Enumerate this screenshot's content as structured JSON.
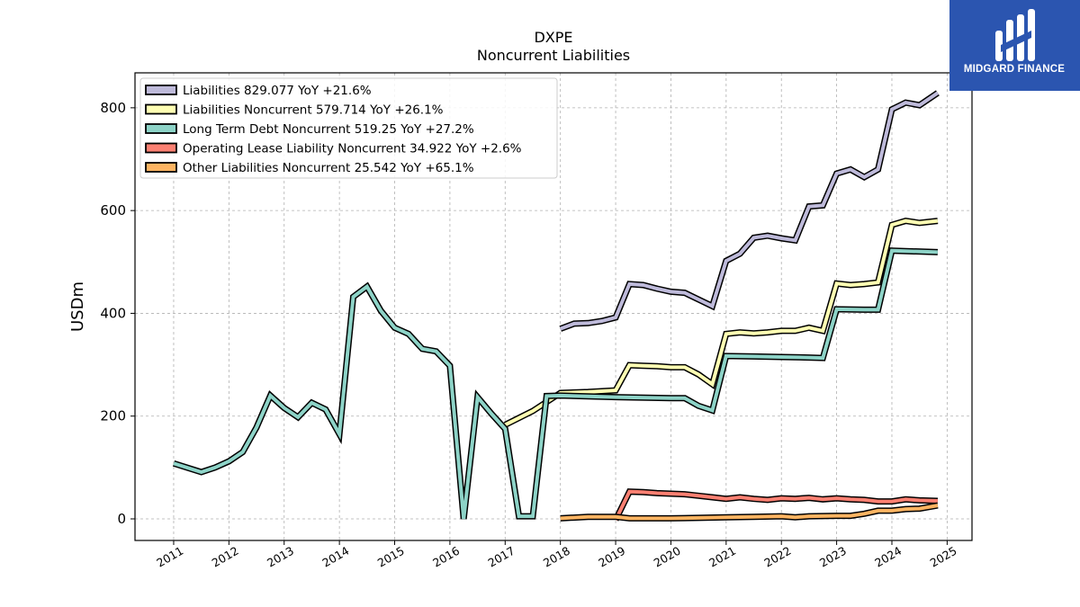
{
  "title": "DXPE",
  "subtitle": "Noncurrent  Liabilities",
  "logo": {
    "text": "MIDGARD FINANCE",
    "background": "#2b55b0"
  },
  "chart_data": {
    "type": "line",
    "ylabel": "USDm",
    "xlabel": "",
    "xlim": [
      2010.3,
      2025.45
    ],
    "ylim": [
      -42,
      868
    ],
    "yticks": [
      0,
      200,
      400,
      600,
      800
    ],
    "xticks": [
      "2011",
      "2012",
      "2013",
      "2014",
      "2015",
      "2016",
      "2017",
      "2018",
      "2019",
      "2020",
      "2021",
      "2022",
      "2023",
      "2024",
      "2025"
    ],
    "grid": true,
    "legend_position": "top-left",
    "series": [
      {
        "name": "Liabilities",
        "legend_label": "Liabilities  829.077 YoY +21.6%",
        "color": "#bebada",
        "points": [
          [
            2018.0,
            370
          ],
          [
            2018.25,
            380
          ],
          [
            2018.5,
            381
          ],
          [
            2018.75,
            385
          ],
          [
            2019.0,
            392
          ],
          [
            2019.25,
            457
          ],
          [
            2019.5,
            455
          ],
          [
            2019.75,
            448
          ],
          [
            2020.0,
            442
          ],
          [
            2020.25,
            440
          ],
          [
            2020.5,
            427
          ],
          [
            2020.75,
            414
          ],
          [
            2021.0,
            502
          ],
          [
            2021.25,
            516
          ],
          [
            2021.5,
            547
          ],
          [
            2021.75,
            551
          ],
          [
            2022.0,
            546
          ],
          [
            2022.25,
            542
          ],
          [
            2022.5,
            608
          ],
          [
            2022.75,
            610
          ],
          [
            2023.0,
            672
          ],
          [
            2023.25,
            680
          ],
          [
            2023.5,
            665
          ],
          [
            2023.75,
            680
          ],
          [
            2024.0,
            797
          ],
          [
            2024.25,
            810
          ],
          [
            2024.5,
            805
          ],
          [
            2024.83,
            829
          ]
        ]
      },
      {
        "name": "Liabilities Noncurrent",
        "legend_label": "Liabilities Noncurrent  579.714 YoY +26.1%",
        "color": "#ffffb3",
        "points": [
          [
            2017.0,
            183
          ],
          [
            2017.5,
            210
          ],
          [
            2018.0,
            245
          ],
          [
            2018.5,
            247
          ],
          [
            2019.0,
            250
          ],
          [
            2019.25,
            299
          ],
          [
            2019.5,
            298
          ],
          [
            2019.75,
            297
          ],
          [
            2020.0,
            295
          ],
          [
            2020.25,
            295
          ],
          [
            2020.5,
            281
          ],
          [
            2020.75,
            262
          ],
          [
            2021.0,
            360
          ],
          [
            2021.25,
            363
          ],
          [
            2021.5,
            361
          ],
          [
            2021.75,
            363
          ],
          [
            2022.0,
            366
          ],
          [
            2022.25,
            366
          ],
          [
            2022.5,
            372
          ],
          [
            2022.75,
            366
          ],
          [
            2023.0,
            458
          ],
          [
            2023.25,
            455
          ],
          [
            2023.5,
            457
          ],
          [
            2023.75,
            460
          ],
          [
            2024.0,
            572
          ],
          [
            2024.25,
            580
          ],
          [
            2024.5,
            576
          ],
          [
            2024.83,
            580
          ]
        ]
      },
      {
        "name": "Long Term Debt Noncurrent",
        "legend_label": "Long Term Debt Noncurrent  519.25 YoY +27.2%",
        "color": "#8dd3c7",
        "points": [
          [
            2011.0,
            108
          ],
          [
            2011.5,
            91
          ],
          [
            2011.75,
            100
          ],
          [
            2012.0,
            112
          ],
          [
            2012.25,
            130
          ],
          [
            2012.5,
            178
          ],
          [
            2012.75,
            240
          ],
          [
            2013.0,
            216
          ],
          [
            2013.25,
            198
          ],
          [
            2013.5,
            226
          ],
          [
            2013.75,
            213
          ],
          [
            2014.0,
            165
          ],
          [
            2014.25,
            432
          ],
          [
            2014.5,
            452
          ],
          [
            2014.75,
            405
          ],
          [
            2015.0,
            372
          ],
          [
            2015.25,
            360
          ],
          [
            2015.5,
            331
          ],
          [
            2015.75,
            326
          ],
          [
            2016.0,
            298
          ],
          [
            2016.25,
            0
          ],
          [
            2016.5,
            237
          ],
          [
            2016.75,
            205
          ],
          [
            2017.0,
            175
          ],
          [
            2017.25,
            5
          ],
          [
            2017.5,
            5
          ],
          [
            2017.75,
            239
          ],
          [
            2018.0,
            240
          ],
          [
            2019.0,
            237
          ],
          [
            2020.0,
            235
          ],
          [
            2020.25,
            235
          ],
          [
            2020.5,
            220
          ],
          [
            2020.75,
            211
          ],
          [
            2021.0,
            317
          ],
          [
            2021.5,
            316
          ],
          [
            2022.0,
            315
          ],
          [
            2022.5,
            314
          ],
          [
            2022.75,
            313
          ],
          [
            2023.0,
            408
          ],
          [
            2023.5,
            407
          ],
          [
            2023.75,
            407
          ],
          [
            2024.0,
            522
          ],
          [
            2024.83,
            519
          ]
        ]
      },
      {
        "name": "Operating Lease Liability Noncurrent",
        "legend_label": "Operating Lease Liability Noncurrent  34.922 YoY +2.6%",
        "color": "#fb8072",
        "points": [
          [
            2019.0,
            -2
          ],
          [
            2019.25,
            53
          ],
          [
            2019.5,
            52
          ],
          [
            2019.75,
            50
          ],
          [
            2020.0,
            49
          ],
          [
            2020.25,
            48
          ],
          [
            2020.5,
            45
          ],
          [
            2020.75,
            42
          ],
          [
            2021.0,
            39
          ],
          [
            2021.25,
            42
          ],
          [
            2021.5,
            39
          ],
          [
            2021.75,
            37
          ],
          [
            2022.0,
            40
          ],
          [
            2022.25,
            39
          ],
          [
            2022.5,
            41
          ],
          [
            2022.75,
            38
          ],
          [
            2023.0,
            40
          ],
          [
            2023.25,
            38
          ],
          [
            2023.5,
            37
          ],
          [
            2023.75,
            34
          ],
          [
            2024.0,
            34
          ],
          [
            2024.25,
            38
          ],
          [
            2024.5,
            36
          ],
          [
            2024.83,
            35
          ]
        ]
      },
      {
        "name": "Other Liabilities Noncurrent",
        "legend_label": "Other Liabilities Noncurrent  25.542 YoY +65.1%",
        "color": "#fdb462",
        "points": [
          [
            2018.0,
            1
          ],
          [
            2018.5,
            4
          ],
          [
            2019.0,
            4
          ],
          [
            2019.25,
            1
          ],
          [
            2019.5,
            1
          ],
          [
            2020.0,
            1
          ],
          [
            2020.5,
            2
          ],
          [
            2021.0,
            3
          ],
          [
            2021.5,
            4
          ],
          [
            2022.0,
            5
          ],
          [
            2022.25,
            3
          ],
          [
            2022.5,
            5
          ],
          [
            2023.0,
            6
          ],
          [
            2023.25,
            6
          ],
          [
            2023.5,
            10
          ],
          [
            2023.75,
            16
          ],
          [
            2024.0,
            16
          ],
          [
            2024.25,
            19
          ],
          [
            2024.5,
            20
          ],
          [
            2024.83,
            26
          ]
        ]
      }
    ]
  }
}
